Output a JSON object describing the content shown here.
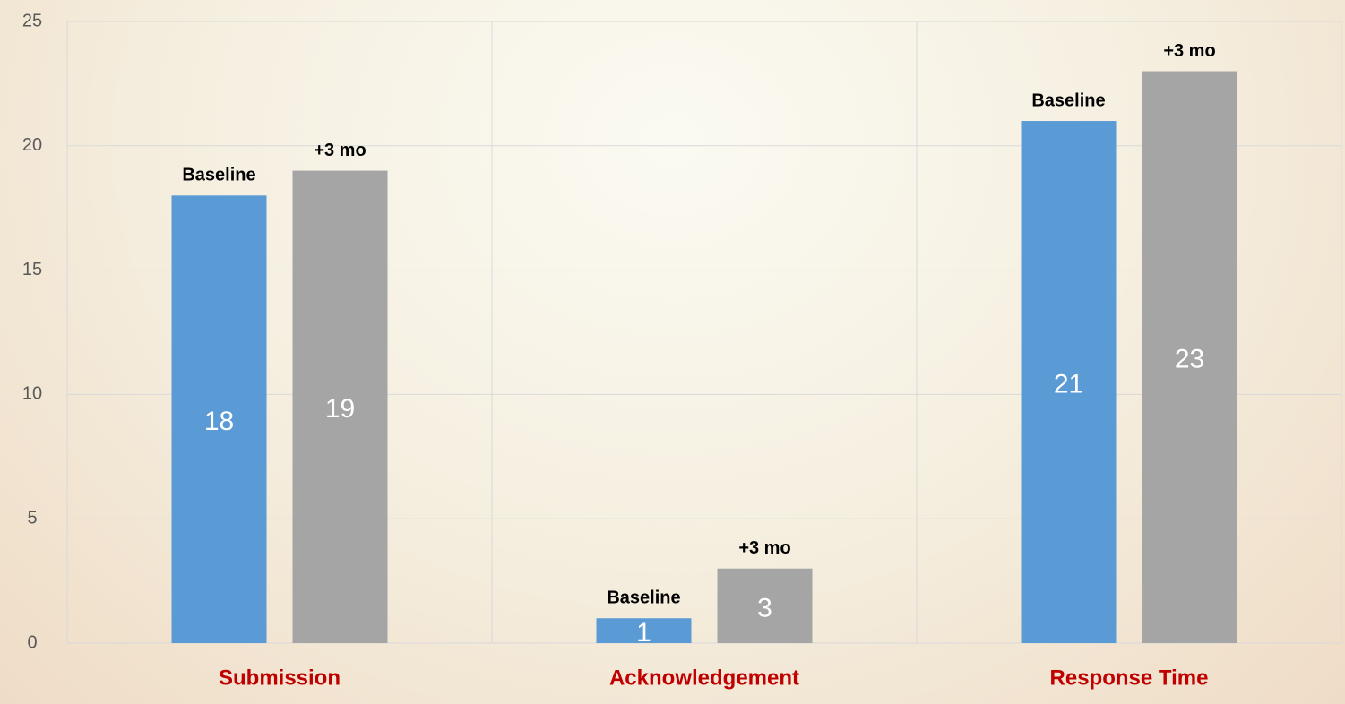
{
  "chart_data": {
    "type": "bar",
    "categories": [
      "Submission",
      "Acknowledgement",
      "Response Time"
    ],
    "series": [
      {
        "name": "Baseline",
        "color": "#5b9bd5",
        "values": [
          18,
          1,
          21
        ]
      },
      {
        "name": "+3 mo",
        "color": "#a5a5a5",
        "values": [
          19,
          3,
          23
        ]
      }
    ],
    "ylim": [
      0,
      25
    ],
    "yticks": [
      0,
      5,
      10,
      15,
      20,
      25
    ],
    "grid": true
  }
}
